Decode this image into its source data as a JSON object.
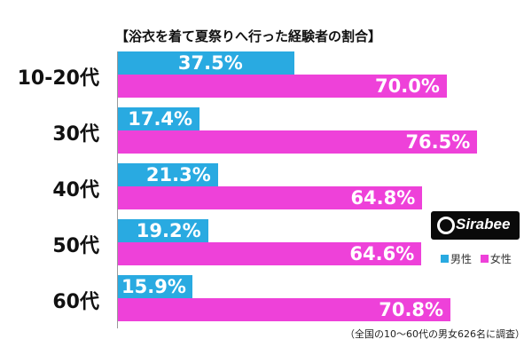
{
  "chart_data": {
    "type": "bar",
    "orientation": "horizontal",
    "title": "【浴衣を着て夏祭りへ行った経験者の割合】",
    "categories": [
      "10-20代",
      "30代",
      "40代",
      "50代",
      "60代"
    ],
    "series": [
      {
        "name": "男性",
        "values": [
          37.5,
          17.4,
          21.3,
          19.2,
          15.9
        ],
        "labels": [
          "37.5%",
          "17.4%",
          "21.3%",
          "19.2%",
          "15.9%"
        ]
      },
      {
        "name": "女性",
        "values": [
          70.0,
          76.5,
          64.8,
          64.6,
          70.8
        ],
        "labels": [
          "70.0%",
          "76.5%",
          "64.8%",
          "64.6%",
          "70.8%"
        ]
      }
    ],
    "xlim": [
      0,
      100
    ],
    "legend_position": "right",
    "colors": {
      "男性": "#29aae1",
      "女性": "#ee41d9"
    },
    "note": "（全国の10～60代の男女626名に調査）"
  },
  "logo": {
    "text": "Sirabee"
  }
}
